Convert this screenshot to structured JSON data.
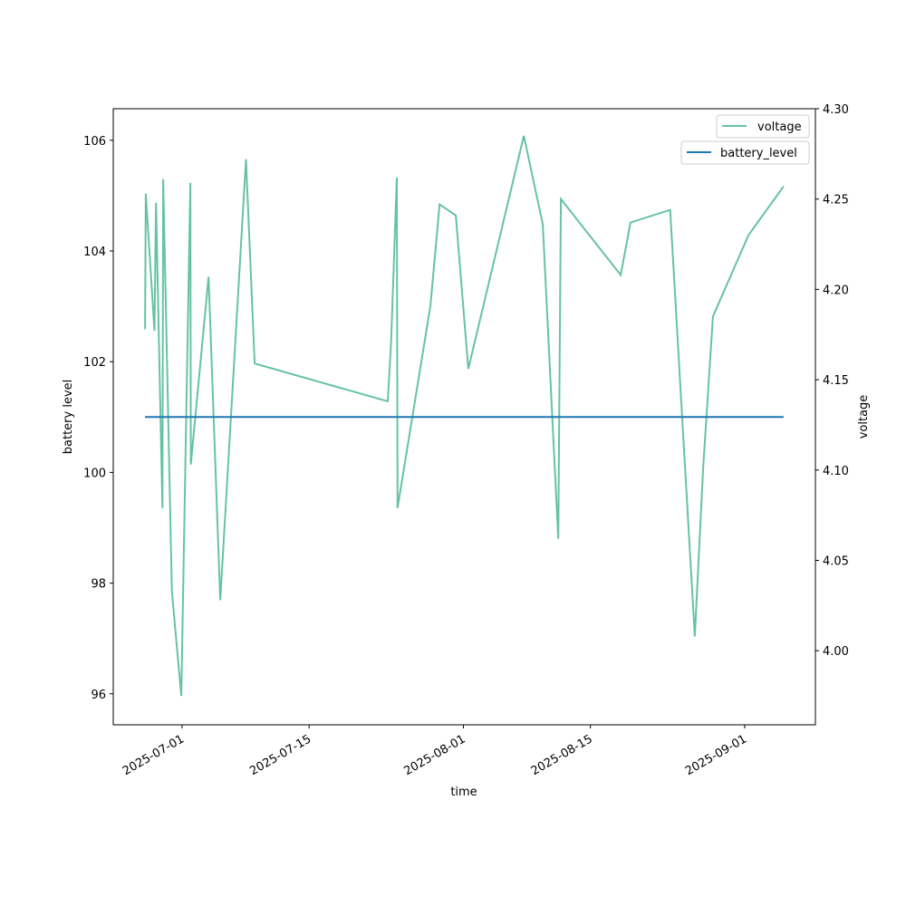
{
  "chart_data": {
    "type": "line",
    "title": "",
    "xlabel": "time",
    "ylabel_left": "battery level",
    "ylabel_right": "voltage",
    "xlim": [
      "2025-06-23T10:00",
      "2025-09-08T19:00"
    ],
    "ylim_left": [
      95.44,
      106.57
    ],
    "ylim_right": [
      3.959,
      4.3
    ],
    "x_ticks": [
      "2025-07-01",
      "2025-07-15",
      "2025-08-01",
      "2025-08-15",
      "2025-09-01"
    ],
    "y_ticks_left": [
      "96",
      "98",
      "100",
      "102",
      "104",
      "106"
    ],
    "y_ticks_right": [
      "4.00",
      "4.05",
      "4.10",
      "4.15",
      "4.20",
      "4.25",
      "4.30"
    ],
    "grid": false,
    "legend_placement": "top-right",
    "series": [
      {
        "name": "battery_level",
        "axis": "left",
        "color": "#1f77b4",
        "x": [
          "2025-06-26T22:00",
          "2025-09-05T07:00"
        ],
        "values": [
          101,
          101
        ]
      },
      {
        "name": "voltage",
        "axis": "right",
        "color": "#66c2a5",
        "x": [
          "2025-06-26T22:00",
          "2025-06-27T00:00",
          "2025-06-27T23:00",
          "2025-06-28T03:00",
          "2025-06-28T20:00",
          "2025-06-28T22:00",
          "2025-06-29T21:00",
          "2025-06-30T22:00",
          "2025-07-01T22:00",
          "2025-07-01T23:00",
          "2025-07-03T22:00",
          "2025-07-05T05:00",
          "2025-07-08T01:00",
          "2025-07-09T00:00",
          "2025-07-23T16:00",
          "2025-07-24T01:00",
          "2025-07-24T16:00",
          "2025-07-24T18:00",
          "2025-07-28T09:00",
          "2025-07-29T09:00",
          "2025-07-31T04:00",
          "2025-08-01T13:00",
          "2025-08-07T16:00",
          "2025-08-09T18:00",
          "2025-08-11T11:00",
          "2025-08-11T18:00",
          "2025-08-18T08:00",
          "2025-08-19T10:00",
          "2025-08-23T19:00",
          "2025-08-26T12:00",
          "2025-08-27T10:00",
          "2025-08-28T12:00",
          "2025-09-01T10:00",
          "2025-09-05T07:00"
        ],
        "values": [
          4.178,
          4.253,
          4.177,
          4.248,
          4.079,
          4.261,
          4.033,
          3.975,
          4.259,
          4.103,
          4.207,
          4.028,
          4.272,
          4.159,
          4.138,
          4.171,
          4.262,
          4.079,
          4.191,
          4.247,
          4.241,
          4.156,
          4.285,
          4.236,
          4.062,
          4.25,
          4.208,
          4.237,
          4.244,
          4.008,
          4.101,
          4.185,
          4.23,
          4.257
        ]
      }
    ]
  }
}
